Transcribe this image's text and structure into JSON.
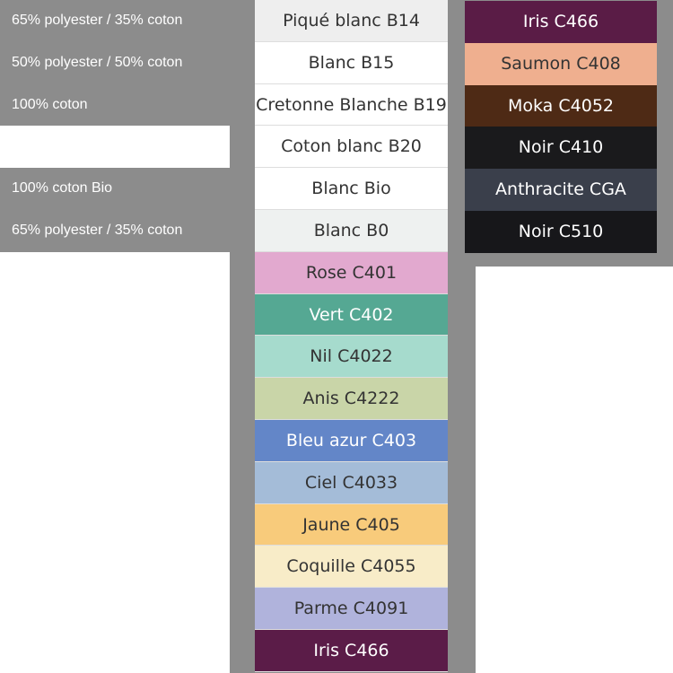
{
  "composition_labels": [
    "65% polyester / 35% coton",
    "50% polyester / 50% coton",
    "100% coton",
    "",
    "100% coton Bio",
    "65% polyester / 35% coton"
  ],
  "swatches_main": [
    {
      "label": "Piqué blanc B14",
      "color": "#eeeeee",
      "text": "#333333"
    },
    {
      "label": "Blanc B15",
      "color": "#ffffff",
      "text": "#333333"
    },
    {
      "label": "Cretonne Blanche B19",
      "color": "#ffffff",
      "text": "#333333"
    },
    {
      "label": "Coton blanc B20",
      "color": "#ffffff",
      "text": "#333333"
    },
    {
      "label": "Blanc Bio",
      "color": "#ffffff",
      "text": "#333333"
    },
    {
      "label": "Blanc B0",
      "color": "#eef1f0",
      "text": "#333333"
    },
    {
      "label": "Rose C401",
      "color": "#e2a9cf",
      "text": "#333333"
    },
    {
      "label": "Vert C402",
      "color": "#55a893",
      "text": "#ffffff"
    },
    {
      "label": "Nil C4022",
      "color": "#a6dbcd",
      "text": "#333333"
    },
    {
      "label": "Anis C4222",
      "color": "#c9d5a8",
      "text": "#333333"
    },
    {
      "label": "Bleu azur C403",
      "color": "#6386c8",
      "text": "#ffffff"
    },
    {
      "label": "Ciel C4033",
      "color": "#a4bcd8",
      "text": "#333333"
    },
    {
      "label": "Jaune C405",
      "color": "#f8cb7b",
      "text": "#333333"
    },
    {
      "label": "Coquille C4055",
      "color": "#f8ecc8",
      "text": "#333333"
    },
    {
      "label": "Parme C4091",
      "color": "#b0b3dc",
      "text": "#333333"
    },
    {
      "label": "Iris C466",
      "color": "#5b1c48",
      "text": "#ffffff"
    }
  ],
  "swatches_dark": [
    {
      "label": "Iris C466",
      "color": "#5a1c46",
      "text": "#ffffff"
    },
    {
      "label": "Saumon C408",
      "color": "#efaf8f",
      "text": "#333333"
    },
    {
      "label": "Moka C4052",
      "color": "#4e2a15",
      "text": "#ffffff"
    },
    {
      "label": "Noir C410",
      "color": "#1a1a1c",
      "text": "#ffffff"
    },
    {
      "label": "Anthracite CGA",
      "color": "#3a3f4b",
      "text": "#ffffff"
    },
    {
      "label": "Noir C510",
      "color": "#17171a",
      "text": "#ffffff"
    }
  ]
}
